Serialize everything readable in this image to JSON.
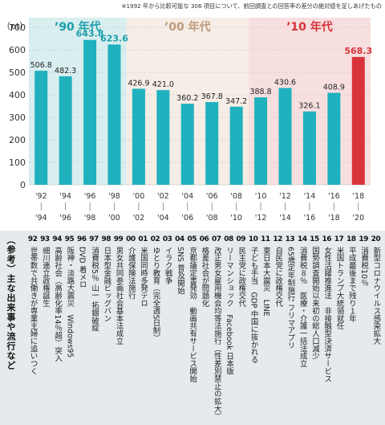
{
  "note": "※1992 年から比較可能な 306 項目について、前回調査との回答率の差分の絶対値を足しあげたもの",
  "chart_data": {
    "type": "bar",
    "ylabel": "（pt）",
    "ylim": [
      0,
      700
    ],
    "yticks": [
      0,
      100,
      200,
      300,
      400,
      500,
      600,
      700
    ],
    "eras": [
      "’90 年代",
      "’00 年代",
      "’10 年代"
    ],
    "categories_top": [
      "'92",
      "'94",
      "'96",
      "'98",
      "'00",
      "'02",
      "'04",
      "'06",
      "'08",
      "'10",
      "'12",
      "'14",
      "'16",
      "'18"
    ],
    "categories_bottom": [
      "'94",
      "'96",
      "'98",
      "'00",
      "'02",
      "'04",
      "'06",
      "'08",
      "'10",
      "'12",
      "'14",
      "'16",
      "'18",
      "'20"
    ],
    "values": [
      506.8,
      482.3,
      643.8,
      623.6,
      426.9,
      421.0,
      360.2,
      367.8,
      347.2,
      388.8,
      430.6,
      326.1,
      408.9,
      568.3
    ],
    "value_labels": [
      "506.8",
      "482.3",
      "643.8",
      "623.6",
      "426.9",
      "421.0",
      "360.2",
      "367.8",
      "347.2",
      "388.8",
      "430.6",
      "326.1",
      "408.9",
      "568.3"
    ],
    "highlight_index": 13,
    "colors": {
      "bar": "#1fb1bd",
      "highlight_bar": "#d8333b",
      "era_90s": "#d9eeee",
      "era_00s": "#f5ede6",
      "era_10s": "#f7dfdf",
      "era_90s_text": "#1a9fab",
      "era_00s_text": "#c09a7a",
      "era_10s_text": "#d8333b",
      "grid": "#bbbbbb"
    }
  },
  "events": {
    "label": "（参考）主な出来事や流行など",
    "items": [
      {
        "year": "92",
        "text": "世帯数で共働きが専業主婦に追いつく"
      },
      {
        "year": "93",
        "text": "細川連立政権誕生"
      },
      {
        "year": "94",
        "text": "高齢社会（高齢化率14％超）突入"
      },
      {
        "year": "95",
        "text": "阪神・淡路大震災　Windows95"
      },
      {
        "year": "96",
        "text": "DVD 着メロ"
      },
      {
        "year": "97",
        "text": "消費税5％ 山一 拓銀破綻"
      },
      {
        "year": "98",
        "text": "日本型金融ビッグバン"
      },
      {
        "year": "99",
        "text": "男女共同参画社会基本法成立"
      },
      {
        "year": "00",
        "text": "介護保険法施行"
      },
      {
        "year": "01",
        "text": "米国同時多発テロ"
      },
      {
        "year": "02",
        "text": "ゆとり教育（完全週5日制）"
      },
      {
        "year": "03",
        "text": "イラク戦争"
      },
      {
        "year": "04",
        "text": "SNS 普及開始"
      },
      {
        "year": "05",
        "text": "京都議定書発効　動画共有サービス開始"
      },
      {
        "year": "06",
        "text": "格差社会が問題化"
      },
      {
        "year": "07",
        "text": "改正男女雇用機会均等法施行（性差別禁止の拡大）"
      },
      {
        "year": "08",
        "text": "リーマンショック　Facebook 日本版"
      },
      {
        "year": "09",
        "text": "民主党に政権交代"
      },
      {
        "year": "10",
        "text": "子ども手当　GDP 中国に抜かれる"
      },
      {
        "year": "11",
        "text": "東日本大震災　LINE"
      },
      {
        "year": "12",
        "text": "自民党に政権交代"
      },
      {
        "year": "13",
        "text": "65歳定年制施行 フリマアプリ"
      },
      {
        "year": "14",
        "text": "消費税８％　医療・介護一括法成立"
      },
      {
        "year": "15",
        "text": "国勢調査開始以来初の総人口減少"
      },
      {
        "year": "16",
        "text": "女性活躍推進法　非接触型決済サービス"
      },
      {
        "year": "17",
        "text": "米国トランプ大統領就任"
      },
      {
        "year": "18",
        "text": "平成最後まで残り１年"
      },
      {
        "year": "19",
        "text": "消費税10％"
      },
      {
        "year": "20",
        "text": "新型コロナウイルス感染拡大"
      }
    ]
  }
}
